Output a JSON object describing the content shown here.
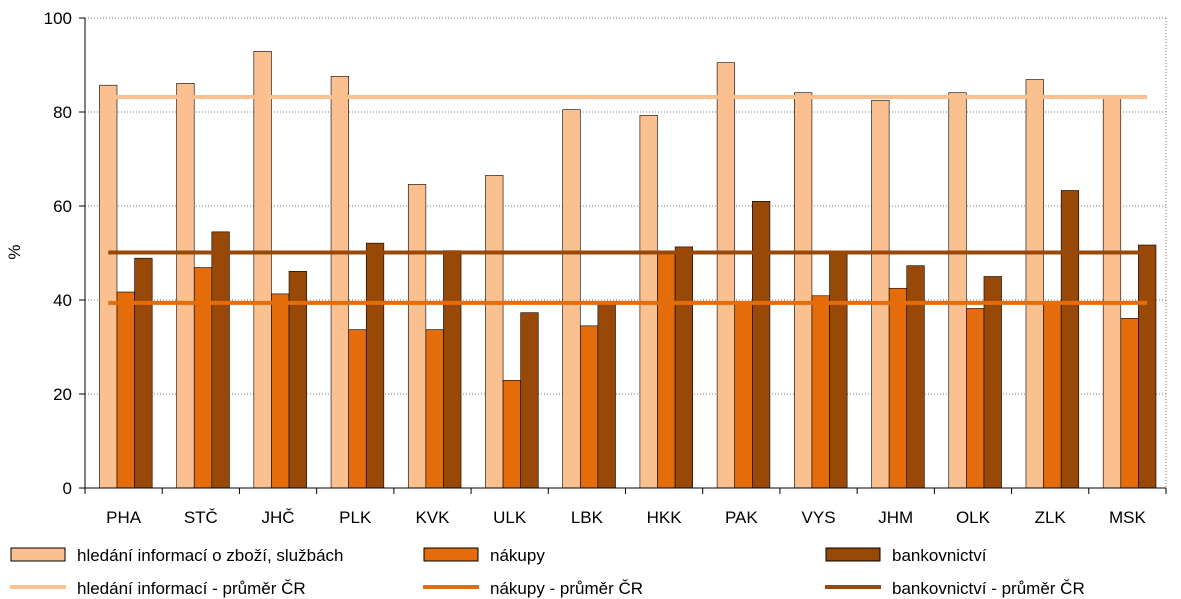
{
  "chart_data": {
    "type": "bar",
    "ylabel": "%",
    "ylim": [
      0,
      100
    ],
    "yticks": [
      0,
      20,
      40,
      60,
      80,
      100
    ],
    "grid": true,
    "legend_position": "bottom",
    "categories": [
      "PHA",
      "STČ",
      "JHČ",
      "PLK",
      "KVK",
      "ULK",
      "LBK",
      "HKK",
      "PAK",
      "VYS",
      "JHM",
      "OLK",
      "ZLK",
      "MSK"
    ],
    "series": [
      {
        "name": "hledání informací o zboží, službách",
        "color": "#fac090",
        "values": [
          85.7,
          86.1,
          92.9,
          87.6,
          64.6,
          66.5,
          80.5,
          79.3,
          90.5,
          84.1,
          82.5,
          84.1,
          86.9,
          83.3
        ]
      },
      {
        "name": "nákupy",
        "color": "#e46c0a",
        "values": [
          41.7,
          46.9,
          41.3,
          33.7,
          33.7,
          22.9,
          34.5,
          50.2,
          39.6,
          40.9,
          42.5,
          38.2,
          39.5,
          36.1
        ]
      },
      {
        "name": "bankovnictví",
        "color": "#984807",
        "values": [
          48.9,
          54.5,
          46.1,
          52.1,
          50.5,
          37.3,
          39.2,
          51.3,
          61.0,
          50.3,
          47.3,
          45.0,
          63.3,
          51.7
        ]
      }
    ],
    "reference_lines": [
      {
        "name": "hledání informací - průměr ČR",
        "color": "#fac090",
        "value": 83.2
      },
      {
        "name": "nákupy - průměr ČR",
        "color": "#e46c0a",
        "value": 39.4
      },
      {
        "name": "bankovnictví - průměr ČR",
        "color": "#984807",
        "value": 50.1
      }
    ]
  }
}
